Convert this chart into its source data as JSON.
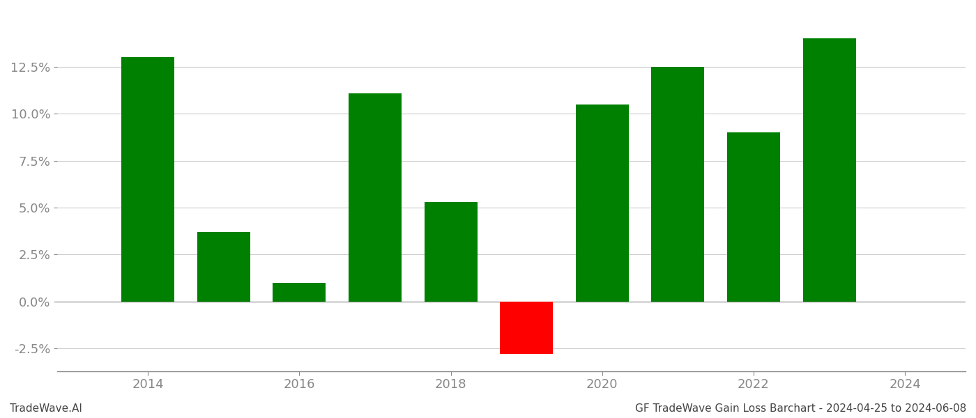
{
  "years": [
    2014,
    2015,
    2016,
    2017,
    2018,
    2019,
    2020,
    2021,
    2022,
    2023
  ],
  "values": [
    0.13,
    0.037,
    0.01,
    0.111,
    0.053,
    -0.028,
    0.105,
    0.125,
    0.09,
    0.14
  ],
  "bar_colors": [
    "#008000",
    "#008000",
    "#008000",
    "#008000",
    "#008000",
    "#ff0000",
    "#008000",
    "#008000",
    "#008000",
    "#008000"
  ],
  "footer_left": "TradeWave.AI",
  "footer_right": "GF TradeWave Gain Loss Barchart - 2024-04-25 to 2024-06-08",
  "ylim_min": -0.037,
  "ylim_max": 0.155,
  "xlim_min": 2012.8,
  "xlim_max": 2024.8,
  "background_color": "#ffffff",
  "grid_color": "#cccccc",
  "tick_label_color": "#888888",
  "bar_width": 0.7,
  "xticks": [
    2014,
    2016,
    2018,
    2020,
    2022,
    2024
  ],
  "yticks": [
    -0.025,
    0.0,
    0.025,
    0.05,
    0.075,
    0.1,
    0.125
  ],
  "footer_fontsize": 11,
  "tick_fontsize": 13
}
